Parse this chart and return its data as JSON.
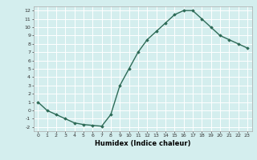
{
  "title": "",
  "xlabel": "Humidex (Indice chaleur)",
  "ylabel": "",
  "x": [
    0,
    1,
    2,
    3,
    4,
    5,
    6,
    7,
    8,
    9,
    10,
    11,
    12,
    13,
    14,
    15,
    16,
    17,
    18,
    19,
    20,
    21,
    22,
    23
  ],
  "y": [
    1,
    0,
    -0.5,
    -1,
    -1.5,
    -1.7,
    -1.8,
    -1.9,
    -0.5,
    3,
    5,
    7,
    8.5,
    9.5,
    10.5,
    11.5,
    12,
    12,
    11,
    10,
    9,
    8.5,
    8,
    7.5
  ],
  "line_color": "#2e6b57",
  "marker": "D",
  "marker_size": 1.8,
  "bg_color": "#d4eeee",
  "grid_color": "#ffffff",
  "ylim": [
    -2.5,
    12.5
  ],
  "xlim": [
    -0.5,
    23.5
  ],
  "yticks": [
    -2,
    -1,
    0,
    1,
    2,
    3,
    4,
    5,
    6,
    7,
    8,
    9,
    10,
    11,
    12
  ],
  "xticks": [
    0,
    1,
    2,
    3,
    4,
    5,
    6,
    7,
    8,
    9,
    10,
    11,
    12,
    13,
    14,
    15,
    16,
    17,
    18,
    19,
    20,
    21,
    22,
    23
  ],
  "tick_fontsize": 4.5,
  "label_fontsize": 6.0,
  "line_width": 1.0
}
